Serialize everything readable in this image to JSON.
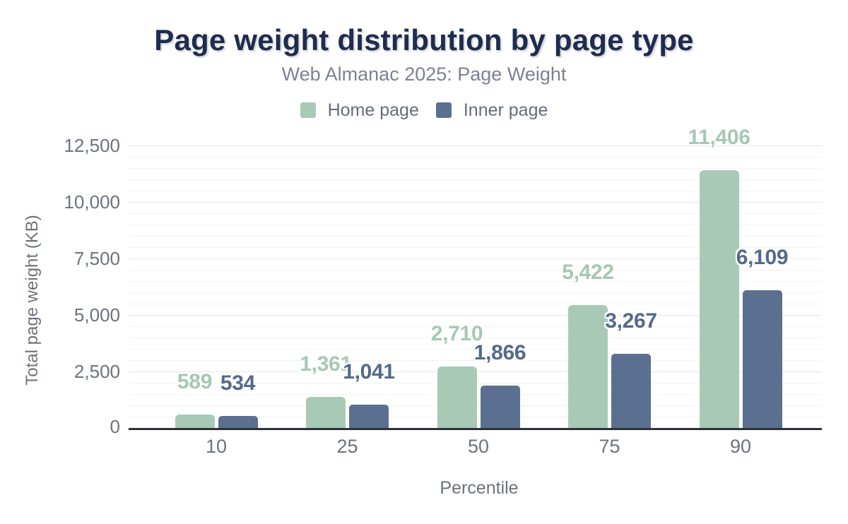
{
  "header": {
    "title": "Page weight distribution by page type",
    "subtitle": "Web Almanac 2025: Page Weight"
  },
  "colors": {
    "title": "#1e2c4f",
    "subtitle": "#7b8292",
    "axis_text": "#6d727c",
    "axis_line": "#2e3035",
    "grid_major": "#e6e7e9",
    "grid_minor": "#f3f3f4",
    "home": "#a9c9b7",
    "home_label": "#a6c8b4",
    "inner": "#5b7090",
    "inner_label": "#54698c"
  },
  "chart_data": {
    "type": "bar",
    "title": "Page weight distribution by page type",
    "subtitle": "Web Almanac 2025: Page Weight",
    "categories": [
      "10",
      "25",
      "50",
      "75",
      "90"
    ],
    "series": [
      {
        "name": "Home page",
        "slug": "home",
        "color": "#a9c9b7",
        "label_color": "#a6c8b4",
        "values": [
          589,
          1361,
          2710,
          5422,
          11406
        ],
        "labels": [
          "589",
          "1,361",
          "2,710",
          "5,422",
          "11,406"
        ]
      },
      {
        "name": "Inner page",
        "slug": "inner",
        "color": "#5b7090",
        "label_color": "#54698c",
        "values": [
          534,
          1041,
          1866,
          3267,
          6109
        ],
        "labels": [
          "534",
          "1,041",
          "1,866",
          "3,267",
          "6,109"
        ]
      }
    ],
    "xlabel": "Percentile",
    "ylabel": "Total page weight (KB)",
    "ylim": [
      0,
      12500
    ],
    "yticks": [
      0,
      2500,
      5000,
      7500,
      10000,
      12500
    ],
    "ytick_labels": [
      "0",
      "2,500",
      "5,000",
      "7,500",
      "10,000",
      "12,500"
    ],
    "minor_tick_step": 500,
    "grid": true,
    "legend_position": "top"
  }
}
